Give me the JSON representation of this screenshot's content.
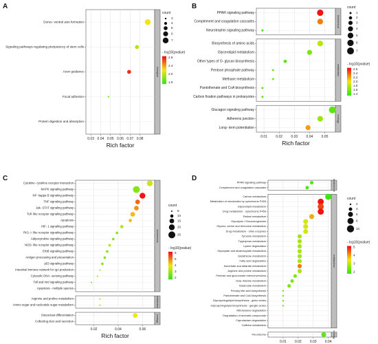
{
  "chart_data": [
    {
      "id": "A",
      "type": "scatter",
      "panel_label": "A",
      "xlabel": "Rich factor",
      "ylabel": "",
      "xlim": [
        0.025,
        0.095
      ],
      "xticks": [
        0.03,
        0.04,
        0.05,
        0.06,
        0.07,
        0.08
      ],
      "grid": true,
      "groups": [
        {
          "label": "biological",
          "items": [
            {
              "term": "Dorso- ventral axis formation",
              "x": 0.088,
              "count": 7,
              "neg_log10_p": 2.2
            },
            {
              "term": "Signaling pathways regulating pluripotency of stem cells",
              "x": 0.077,
              "count": 5,
              "neg_log10_p": 1.9
            },
            {
              "term": "Axon guidance",
              "x": 0.069,
              "count": 5,
              "neg_log10_p": 2.9
            },
            {
              "term": "Focal adhesion",
              "x": 0.048,
              "count": 3,
              "neg_log10_p": 1.7
            },
            {
              "term": "Protein digestion and absorption",
              "x": 0.028,
              "count": 1,
              "neg_log10_p": 1.4
            }
          ]
        }
      ],
      "size_legend": {
        "title": "count",
        "values": [
          3,
          4,
          5,
          6,
          7
        ]
      },
      "color_legend": {
        "title": "- log10(pvalue)",
        "ticks": [
          "2.8",
          "2.4",
          "2.0",
          "1.6"
        ],
        "range": [
          1.4,
          3.0
        ]
      }
    },
    {
      "id": "B",
      "type": "scatter",
      "panel_label": "B",
      "xlabel": "Rich factor",
      "ylabel": "",
      "xlim": [
        0.005,
        0.057
      ],
      "xticks": [
        0.01,
        0.02,
        0.03,
        0.04,
        0.05
      ],
      "grid": true,
      "groups": [
        {
          "label": "biochemical",
          "items": [
            {
              "term": "PPAR signaling pathway",
              "x": 0.047,
              "count": 6,
              "neg_log10_p": 2.6
            },
            {
              "term": "Complement and coagulation cascades",
              "x": 0.047,
              "count": 5,
              "neg_log10_p": 2.3
            },
            {
              "term": "Neurotrophin signaling pathway",
              "x": 0.009,
              "count": 1,
              "neg_log10_p": 1.4
            }
          ]
        },
        {
          "label": "metabolism",
          "items": [
            {
              "term": "Biosynthesis of amino acids",
              "x": 0.047,
              "count": 5,
              "neg_log10_p": 1.8
            },
            {
              "term": "Glycerolipid metabolism",
              "x": 0.04,
              "count": 4,
              "neg_log10_p": 1.6
            },
            {
              "term": "Other types of O- glycan biosynthesis",
              "x": 0.024,
              "count": 2,
              "neg_log10_p": 1.5
            },
            {
              "term": "Pentose phosphate pathway",
              "x": 0.016,
              "count": 1,
              "neg_log10_p": 1.6
            },
            {
              "term": "Methane metabolism",
              "x": 0.016,
              "count": 1,
              "neg_log10_p": 1.6
            },
            {
              "term": "Pantothenate and CoA biosynthesis",
              "x": 0.009,
              "count": 1,
              "neg_log10_p": 1.5
            },
            {
              "term": "Carbon fixation pathways in prokaryotes",
              "x": 0.009,
              "count": 1,
              "neg_log10_p": 1.5
            }
          ]
        },
        {
          "label": "ecology",
          "items": [
            {
              "term": "Glucagon signaling pathway",
              "x": 0.055,
              "count": 7,
              "neg_log10_p": 1.5
            },
            {
              "term": "Adherens junction",
              "x": 0.047,
              "count": 5,
              "neg_log10_p": 1.7
            },
            {
              "term": "Long- term potentiation",
              "x": 0.039,
              "count": 4,
              "neg_log10_p": 2.2
            }
          ]
        }
      ],
      "size_legend": {
        "title": "count",
        "values": [
          1,
          2,
          3,
          4,
          5,
          6,
          7
        ]
      },
      "color_legend": {
        "title": "- log10(pvalue)",
        "ticks": [
          "2.6",
          "2.4",
          "2.2",
          "2.0",
          "1.8",
          "1.6",
          "1.4"
        ],
        "range": [
          1.4,
          2.6
        ]
      }
    },
    {
      "id": "C",
      "type": "scatter",
      "panel_label": "C",
      "xlabel": "Rich factor",
      "ylabel": "",
      "xlim": [
        0.005,
        0.07
      ],
      "xticks": [
        0.02,
        0.04,
        0.06
      ],
      "grid": true,
      "groups": [
        {
          "label": "biochemical",
          "items": [
            {
              "term": "Cytokine- cytokine receptor interaction",
              "x": 0.066,
              "count": 20,
              "neg_log10_p": 3.5
            },
            {
              "term": "MAPK signaling pathway",
              "x": 0.055,
              "count": 25,
              "neg_log10_p": 2.5
            },
            {
              "term": "NF- kappa B signaling pathway",
              "x": 0.06,
              "count": 20,
              "neg_log10_p": 6.5
            },
            {
              "term": "TNF signaling pathway",
              "x": 0.056,
              "count": 15,
              "neg_log10_p": 5.5
            },
            {
              "term": "Jak- STAT signaling pathway",
              "x": 0.055,
              "count": 15,
              "neg_log10_p": 5.0
            },
            {
              "term": "Toll- like receptor signaling pathway",
              "x": 0.052,
              "count": 15,
              "neg_log10_p": 4.5
            },
            {
              "term": "Apoptosis",
              "x": 0.05,
              "count": 10,
              "neg_log10_p": 4.5
            },
            {
              "term": "HIF- 1 signaling pathway",
              "x": 0.043,
              "count": 10,
              "neg_log10_p": 3.0
            },
            {
              "term": "RIG- I- like receptor signaling pathway",
              "x": 0.039,
              "count": 8,
              "neg_log10_p": 2.5
            },
            {
              "term": "Adipocytokine signaling pathway",
              "x": 0.036,
              "count": 8,
              "neg_log10_p": 2.5
            },
            {
              "term": "NOD- like receptor signaling pathway",
              "x": 0.033,
              "count": 8,
              "neg_log10_p": 3.0
            },
            {
              "term": "ErbB signaling pathway",
              "x": 0.031,
              "count": 8,
              "neg_log10_p": 2.5
            },
            {
              "term": "Antigen processing and presentation",
              "x": 0.029,
              "count": 8,
              "neg_log10_p": 2.5
            },
            {
              "term": "p53 signaling pathway",
              "x": 0.027,
              "count": 8,
              "neg_log10_p": 2.5
            },
            {
              "term": "Intestinal immune network for IgA production",
              "x": 0.025,
              "count": 5,
              "neg_log10_p": 2.5
            },
            {
              "term": "Cytosolic DNA- sensing pathway",
              "x": 0.023,
              "count": 5,
              "neg_log10_p": 2.5
            },
            {
              "term": "Toll and Imd signaling pathway",
              "x": 0.018,
              "count": 5,
              "neg_log10_p": 2.0
            },
            {
              "term": "Apoptosis - multiple species",
              "x": 0.011,
              "count": 2,
              "neg_log10_p": 1.5
            }
          ]
        },
        {
          "label": "metabolism",
          "items": [
            {
              "term": "Arginine and proline metabolism",
              "x": 0.025,
              "count": 5,
              "neg_log10_p": 2.5
            },
            {
              "term": "Amino sugar and nucleotide sugar metabolism",
              "x": 0.025,
              "count": 5,
              "neg_log10_p": 2.5
            }
          ]
        },
        {
          "label": "ecology",
          "items": [
            {
              "term": "Osteoclast differentiation",
              "x": 0.054,
              "count": 15,
              "neg_log10_p": 4.0
            },
            {
              "term": "Collecting duct acid secretion",
              "x": 0.014,
              "count": 2,
              "neg_log10_p": 1.5
            }
          ]
        }
      ],
      "size_legend": {
        "title": "count",
        "values": [
          5,
          10,
          15,
          20,
          25
        ]
      },
      "color_legend": {
        "title": "- log10(pvalue)",
        "ticks": [
          "6",
          "5",
          "4",
          "3",
          "2"
        ],
        "range": [
          1.5,
          6.5
        ]
      }
    },
    {
      "id": "D",
      "type": "scatter",
      "panel_label": "D",
      "xlabel": "Rich factor",
      "ylabel": "",
      "xlim": [
        0.0,
        0.042
      ],
      "xticks": [
        0.01,
        0.02,
        0.03,
        0.04
      ],
      "grid": true,
      "groups": [
        {
          "label": "biochemical",
          "items": [
            {
              "term": "PPAR signaling pathway",
              "x": 0.029,
              "count": 4,
              "neg_log10_p": 1.6
            },
            {
              "term": "Complement and coagulation cascades",
              "x": 0.026,
              "count": 4,
              "neg_log10_p": 1.5
            }
          ]
        },
        {
          "label": "metabolism",
          "items": [
            {
              "term": "Carbon metabolism",
              "x": 0.04,
              "count": 8,
              "neg_log10_p": 1.3
            },
            {
              "term": "Metabolism of xenobiotics by cytochrome P450",
              "x": 0.035,
              "count": 8,
              "neg_log10_p": 5.5
            },
            {
              "term": "Glycerolipid metabolism",
              "x": 0.035,
              "count": 8,
              "neg_log10_p": 5.0
            },
            {
              "term": "Drug metabolism - cytochrome P450",
              "x": 0.035,
              "count": 8,
              "neg_log10_p": 5.5
            },
            {
              "term": "Retinol metabolism",
              "x": 0.029,
              "count": 6,
              "neg_log10_p": 4.0
            },
            {
              "term": "Glycolysis / Gluconeogenesis",
              "x": 0.025,
              "count": 6,
              "neg_log10_p": 3.0
            },
            {
              "term": "Glycine, serine and threonine metabolism",
              "x": 0.025,
              "count": 6,
              "neg_log10_p": 3.0
            },
            {
              "term": "Drug metabolism - other enzymes",
              "x": 0.025,
              "count": 6,
              "neg_log10_p": 3.0
            },
            {
              "term": "Tyrosine metabolism",
              "x": 0.021,
              "count": 5,
              "neg_log10_p": 2.5
            },
            {
              "term": "Tryptophan metabolism",
              "x": 0.021,
              "count": 5,
              "neg_log10_p": 2.5
            },
            {
              "term": "Lysine degradation",
              "x": 0.021,
              "count": 5,
              "neg_log10_p": 2.5
            },
            {
              "term": "Glyoxylate and dicarboxylate metabolism",
              "x": 0.021,
              "count": 5,
              "neg_log10_p": 2.5
            },
            {
              "term": "Glutathione metabolism",
              "x": 0.021,
              "count": 5,
              "neg_log10_p": 2.5
            },
            {
              "term": "Fatty acid degradation",
              "x": 0.021,
              "count": 5,
              "neg_log10_p": 2.5
            },
            {
              "term": "Ascorbate and aldarate metabolism",
              "x": 0.021,
              "count": 5,
              "neg_log10_p": 4.5
            },
            {
              "term": "Arginine and proline metabolism",
              "x": 0.021,
              "count": 5,
              "neg_log10_p": 2.5
            },
            {
              "term": "Pentose and glucuronate interconversions",
              "x": 0.018,
              "count": 4,
              "neg_log10_p": 2.0
            },
            {
              "term": "beta- Alanine metabolism",
              "x": 0.016,
              "count": 4,
              "neg_log10_p": 2.0
            },
            {
              "term": "Butanoate metabolism",
              "x": 0.014,
              "count": 4,
              "neg_log10_p": 2.0
            },
            {
              "term": "Primary bile acid biosynthesis",
              "x": 0.01,
              "count": 2,
              "neg_log10_p": 1.8
            },
            {
              "term": "Pantothenate and CoA biosynthesis",
              "x": 0.01,
              "count": 2,
              "neg_log10_p": 1.8
            },
            {
              "term": "Glycosphingolipid biosynthesis - globo series",
              "x": 0.01,
              "count": 2,
              "neg_log10_p": 1.8
            },
            {
              "term": "Glycosphingolipid biosynthesis - ganglio series",
              "x": 0.01,
              "count": 2,
              "neg_log10_p": 1.8
            },
            {
              "term": "Nitrotoluene degradation",
              "x": 0.002,
              "count": 1,
              "neg_log10_p": 1.3
            },
            {
              "term": "Degradation of aromatic compounds",
              "x": 0.002,
              "count": 1,
              "neg_log10_p": 1.3
            },
            {
              "term": "Caprolactam degradation",
              "x": 0.002,
              "count": 1,
              "neg_log10_p": 1.3
            },
            {
              "term": "Caffeine metabolism",
              "x": 0.002,
              "count": 1,
              "neg_log10_p": 1.3
            }
          ]
        },
        {
          "label": "ecology",
          "items": [
            {
              "term": "Peroxisome",
              "x": 0.037,
              "count": 6,
              "neg_log10_p": 1.7
            }
          ]
        }
      ],
      "size_legend": {
        "title": "count",
        "values": [
          2,
          4,
          6,
          8,
          10
        ]
      },
      "color_legend": {
        "title": "- log10(pvalue)",
        "ticks": [
          "5",
          "4",
          "3",
          "2"
        ],
        "range": [
          1.3,
          5.5
        ]
      }
    }
  ]
}
